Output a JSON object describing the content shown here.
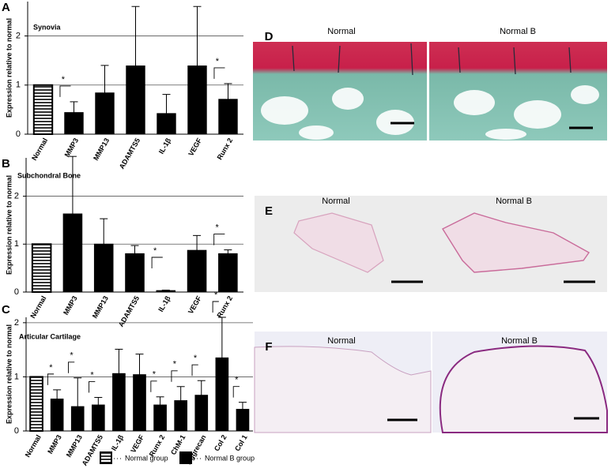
{
  "chart_data": [
    {
      "type": "bar",
      "panel_label": "A",
      "title": "Synovia",
      "y_label": "Expression relative to normal",
      "categories": [
        "Normal",
        "MMP3",
        "MMP13",
        "ADAMTS5",
        "IL-1β",
        "VEGF",
        "Runx 2"
      ],
      "values": [
        1.0,
        0.44,
        0.84,
        1.39,
        0.42,
        1.39,
        0.71
      ],
      "errors": [
        0,
        0.22,
        0.56,
        1.21,
        0.39,
        1.21,
        0.32
      ],
      "ylim": [
        0,
        2.7
      ],
      "yticks": [
        0,
        1,
        2
      ],
      "grid": true,
      "color": "#000000",
      "annotations": [
        {
          "category": "MMP3",
          "text": "*"
        },
        {
          "category": "Runx 2",
          "text": "*"
        }
      ]
    },
    {
      "type": "bar",
      "panel_label": "B",
      "title": "Subchondral  Bone",
      "y_label": "Expression relative to normal",
      "categories": [
        "Normal",
        "MMP3",
        "MMP13",
        "ADAMTS5",
        "IL-1β",
        "VEGF",
        "Runx 2"
      ],
      "values": [
        1.0,
        1.63,
        1.0,
        0.8,
        0.03,
        0.87,
        0.8
      ],
      "errors": [
        0,
        1.2,
        0.53,
        0.17,
        0.01,
        0.31,
        0.08
      ],
      "ylim": [
        0,
        2.8
      ],
      "yticks": [
        0,
        1,
        2
      ],
      "grid": true,
      "color": "#000000",
      "annotations": [
        {
          "category": "IL-1β",
          "text": "*"
        },
        {
          "category": "Runx 2",
          "text": "*"
        }
      ]
    },
    {
      "type": "bar",
      "panel_label": "C",
      "title": "Articular Cartilage",
      "y_label": "Expression relative to normal",
      "categories": [
        "Normal",
        "MMP3",
        "MMP13",
        "ADAMTS5",
        "IL-1β",
        "VEGF",
        "Runx 2",
        "ChM-1",
        "Aggrecan",
        "Col 2",
        "Col 1"
      ],
      "values": [
        1.0,
        0.59,
        0.45,
        0.48,
        1.06,
        1.04,
        0.48,
        0.56,
        0.66,
        1.35,
        0.4
      ],
      "errors": [
        0,
        0.17,
        0.53,
        0.14,
        0.45,
        0.38,
        0.15,
        0.26,
        0.27,
        0.75,
        0.13
      ],
      "ylim": [
        0,
        2.1
      ],
      "yticks": [
        0,
        1,
        2
      ],
      "grid": true,
      "color": "#000000",
      "annotations": [
        {
          "category": "MMP3",
          "text": "*"
        },
        {
          "category": "MMP13",
          "text": "*"
        },
        {
          "category": "ADAMTS5",
          "text": "*"
        },
        {
          "category": "Runx 2",
          "text": "*"
        },
        {
          "category": "ChM-1",
          "text": "*"
        },
        {
          "category": "Aggrecan",
          "text": "*"
        },
        {
          "category": "Col 2",
          "text": "*"
        },
        {
          "category": "Col 1",
          "text": "*"
        }
      ]
    }
  ],
  "reference_category": "Normal",
  "legend": [
    {
      "name": "Normal group",
      "fill": "hatched"
    },
    {
      "name": "Normal B group",
      "fill": "#000000"
    }
  ],
  "image_panels": [
    {
      "label": "D",
      "images": [
        "Normal",
        "Normal B"
      ]
    },
    {
      "label": "E",
      "images": [
        "Normal",
        "Normal B"
      ]
    },
    {
      "label": "F",
      "images": [
        "Normal",
        "Normal B"
      ]
    }
  ]
}
